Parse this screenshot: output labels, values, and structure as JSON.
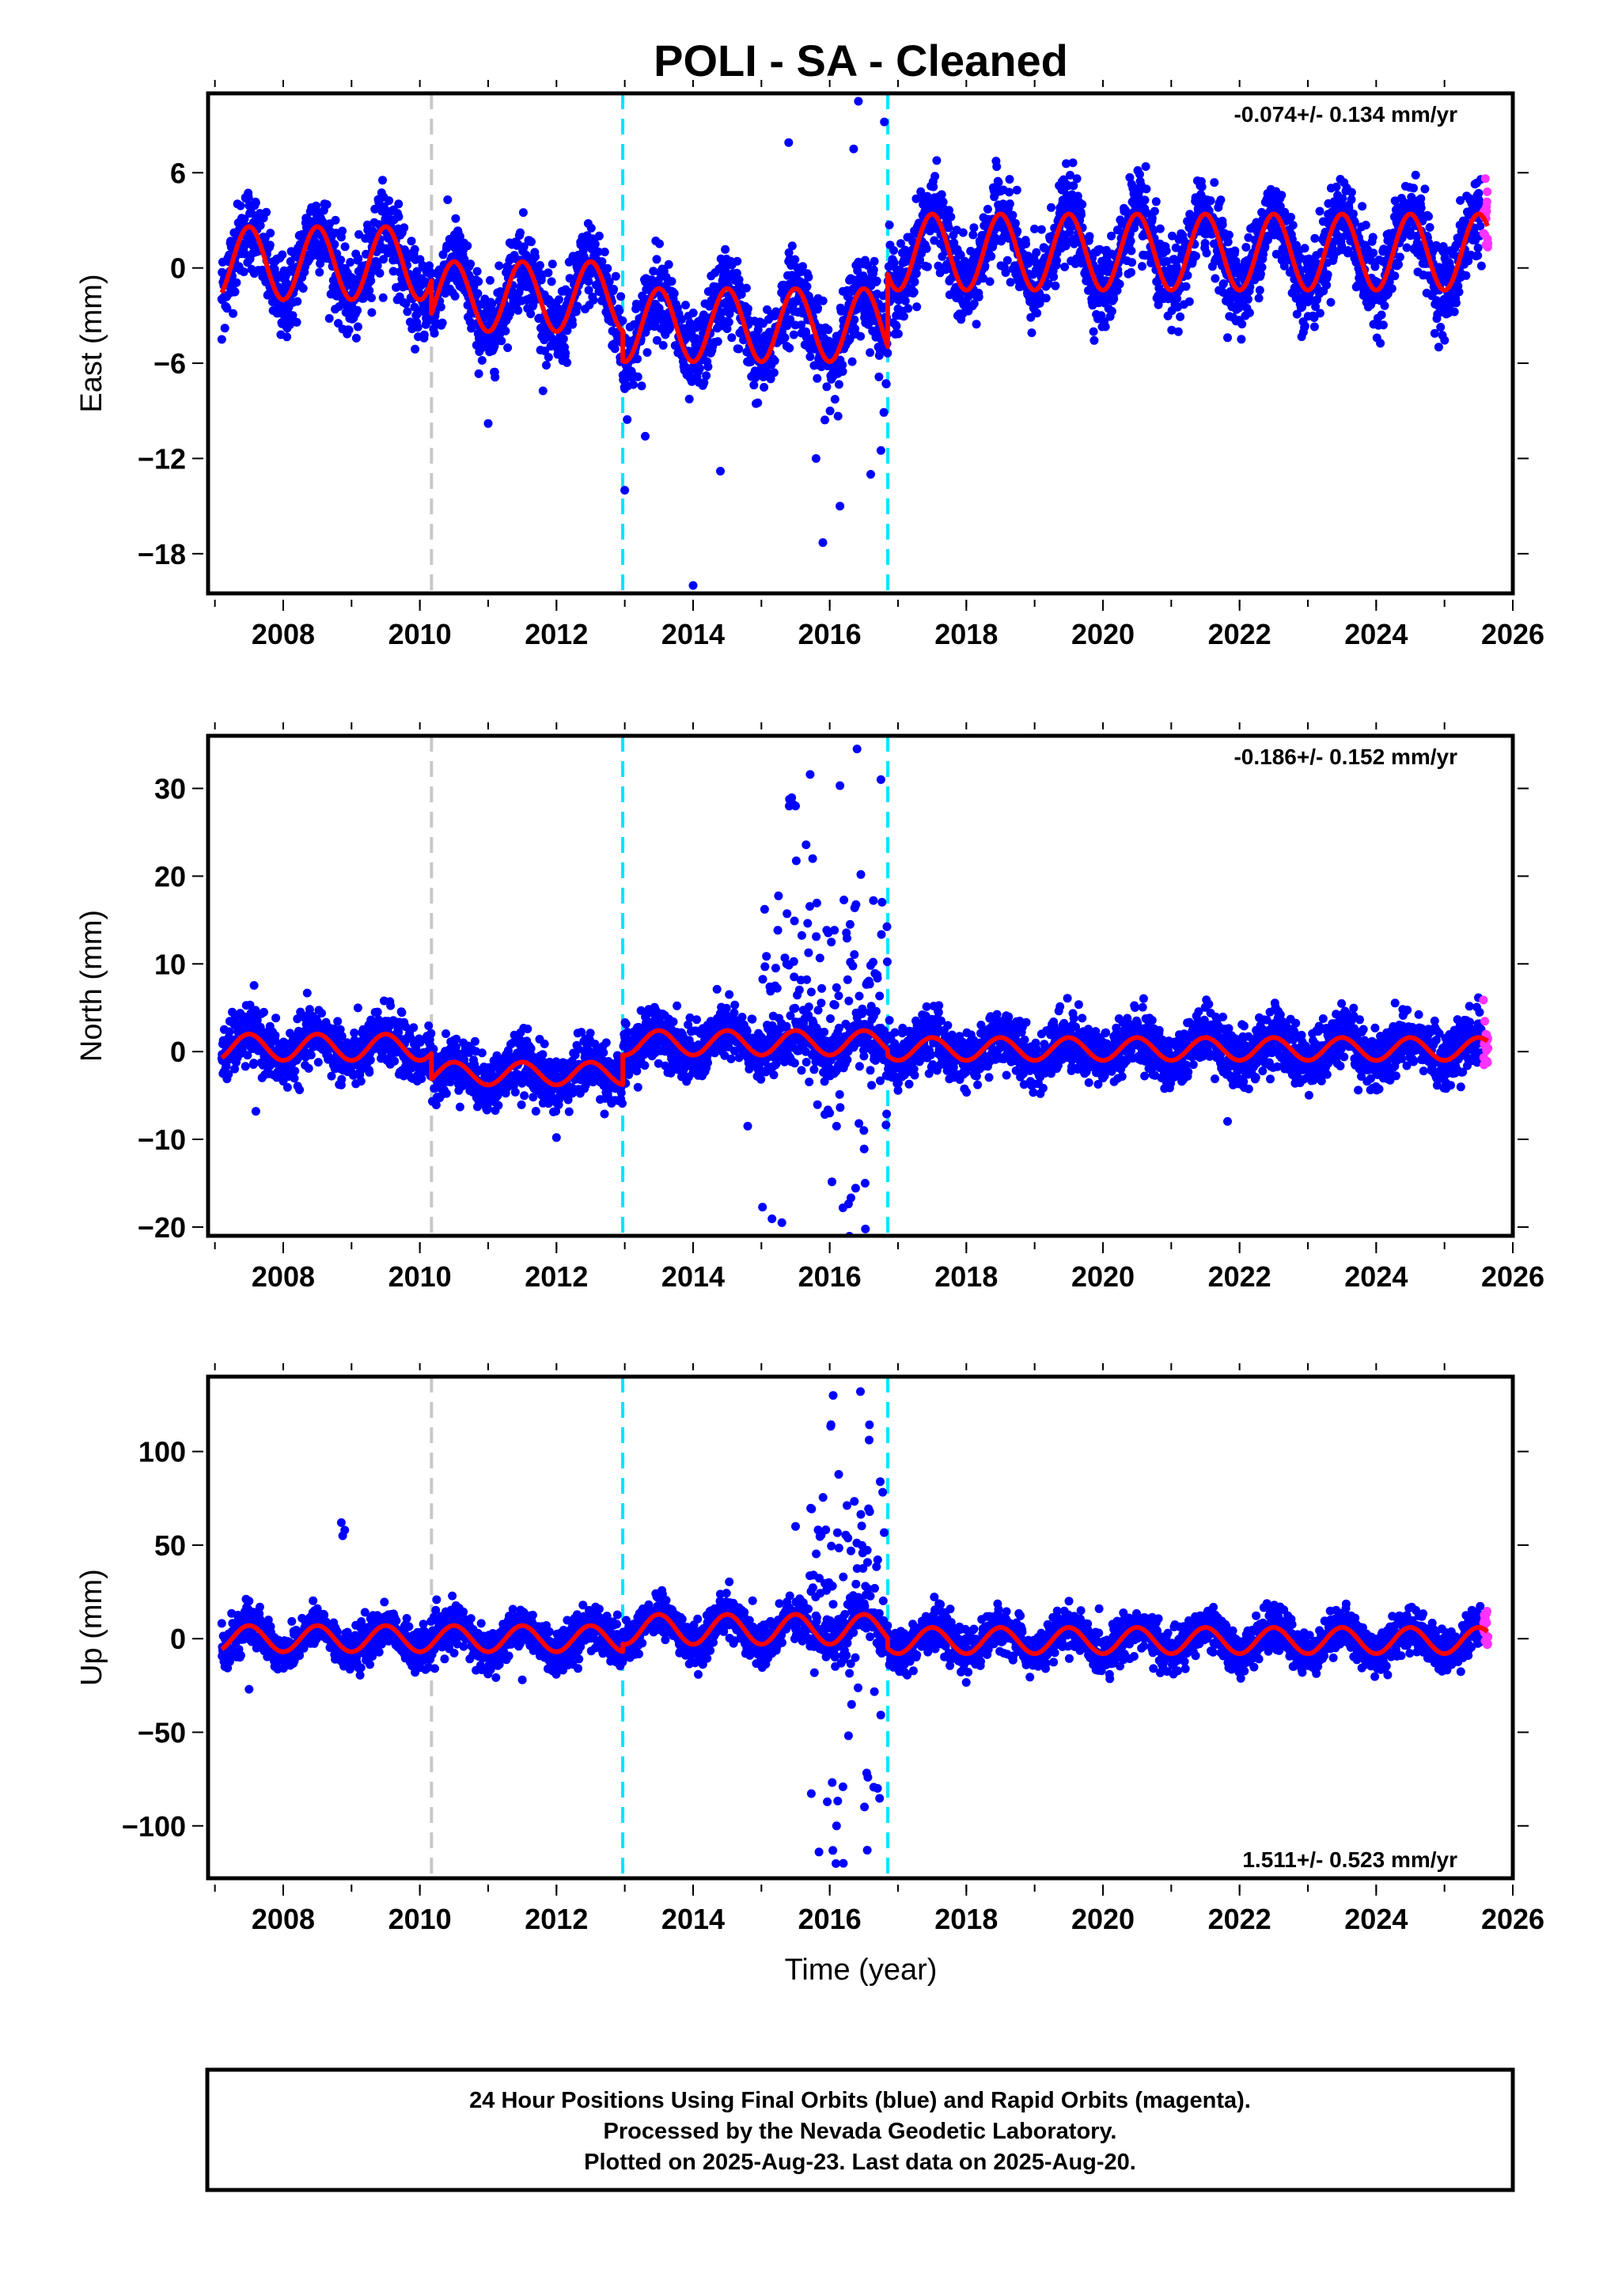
{
  "chart_data": {
    "title": "POLI  - SA - Cleaned",
    "type": "scatter",
    "xlabel": "Time (year)",
    "xlim": [
      2006.9,
      2026.0
    ],
    "x_ticks": [
      2008,
      2010,
      2012,
      2014,
      2016,
      2018,
      2020,
      2022,
      2024,
      2026
    ],
    "reference_lines": [
      {
        "x": 2010.17,
        "color": "#c8c8c8"
      },
      {
        "x": 2012.97,
        "color": "#00e5ff"
      },
      {
        "x": 2016.85,
        "color": "#00e5ff"
      }
    ],
    "colors": {
      "final": "#0000ff",
      "rapid": "#ff33ff",
      "model": "#ff0000"
    },
    "panels": [
      {
        "ylabel": "East (mm)",
        "ylim": [
          -20.5,
          11
        ],
        "y_ticks": [
          6,
          0,
          -6,
          -12,
          -18
        ],
        "rate": "-0.074+/- 0.134 mm/yr",
        "rate_position": "top-right",
        "segments": [
          {
            "start": 2007.1,
            "end": 2010.17,
            "offset": 0.3,
            "amp": 2.3
          },
          {
            "start": 2010.17,
            "end": 2012.97,
            "offset": -1.8,
            "amp": 2.2
          },
          {
            "start": 2012.97,
            "end": 2016.85,
            "offset": -3.6,
            "amp": 2.3
          },
          {
            "start": 2016.85,
            "end": 2025.63,
            "offset": 1.0,
            "amp": 2.4
          }
        ],
        "scatter": 1.3,
        "outliers": [
          [
            2013.0,
            -14.0
          ],
          [
            2014.0,
            -20.0
          ],
          [
            2015.9,
            -17.3
          ],
          [
            2016.42,
            10.5
          ],
          [
            2015.4,
            7.9
          ],
          [
            2016.35,
            7.5
          ],
          [
            2016.8,
            9.2
          ],
          [
            2015.8,
            -12.0
          ],
          [
            2016.6,
            -13.0
          ],
          [
            2016.15,
            -15.0
          ],
          [
            2016.75,
            -11.5
          ],
          [
            2007.1,
            -4.5
          ],
          [
            2011.0,
            -9.8
          ],
          [
            2013.3,
            -10.6
          ],
          [
            2014.4,
            -12.8
          ]
        ]
      },
      {
        "ylabel": "North (mm)",
        "ylim": [
          -21,
          36
        ],
        "y_ticks": [
          30,
          20,
          10,
          0,
          -10,
          -20
        ],
        "rate": "-0.186+/- 0.152 mm/yr",
        "rate_position": "top-right",
        "segments": [
          {
            "start": 2007.1,
            "end": 2010.17,
            "offset": 0.5,
            "amp": 1.5
          },
          {
            "start": 2010.17,
            "end": 2012.97,
            "offset": -2.5,
            "amp": 1.3
          },
          {
            "start": 2012.97,
            "end": 2016.85,
            "offset": 1.0,
            "amp": 1.4
          },
          {
            "start": 2016.85,
            "end": 2025.63,
            "offset": 0.3,
            "amp": 1.3
          }
        ],
        "scatter": 1.6,
        "burst": {
          "start": 2015.0,
          "end": 2016.85,
          "max": 34
        },
        "outliers": [
          [
            2016.4,
            34.5
          ],
          [
            2016.75,
            31.0
          ],
          [
            2015.75,
            22.0
          ],
          [
            2015.5,
            28.0
          ],
          [
            2015.3,
            -19.5
          ],
          [
            2016.0,
            -7.0
          ],
          [
            2016.1,
            -8.5
          ],
          [
            2016.5,
            -9.0
          ],
          [
            2007.6,
            -6.8
          ],
          [
            2012.0,
            -9.8
          ],
          [
            2014.8,
            -8.5
          ]
        ]
      },
      {
        "ylabel": "Up (mm)",
        "ylim": [
          -128,
          140
        ],
        "y_ticks": [
          100,
          50,
          0,
          -50,
          -100
        ],
        "rate": "1.511+/- 0.523 mm/yr",
        "rate_position": "bottom-right",
        "segments": [
          {
            "start": 2007.1,
            "end": 2010.17,
            "offset": 0,
            "amp": 7
          },
          {
            "start": 2010.17,
            "end": 2012.97,
            "offset": 0,
            "amp": 7
          },
          {
            "start": 2012.97,
            "end": 2016.85,
            "offset": 5,
            "amp": 8
          },
          {
            "start": 2016.85,
            "end": 2025.63,
            "offset": -1,
            "amp": 7
          }
        ],
        "scatter": 5.5,
        "burst": {
          "start": 2015.7,
          "end": 2016.8,
          "max": 135
        },
        "outliers": [
          [
            2008.85,
            62
          ],
          [
            2008.9,
            58
          ],
          [
            2008.87,
            55
          ],
          [
            2007.5,
            -27
          ],
          [
            2011.5,
            -22
          ],
          [
            2016.05,
            130
          ],
          [
            2016.45,
            132
          ],
          [
            2016.2,
            -120
          ],
          [
            2016.55,
            -113
          ],
          [
            2016.1,
            -100
          ],
          [
            2015.5,
            60
          ],
          [
            2016.7,
            -80
          ]
        ]
      }
    ]
  },
  "footer": {
    "line1": "24 Hour Positions Using Final Orbits (blue) and Rapid Orbits (magenta).",
    "line2": "Processed by the Nevada Geodetic Laboratory.",
    "line3": "Plotted on 2025-Aug-23. Last data on 2025-Aug-20."
  }
}
